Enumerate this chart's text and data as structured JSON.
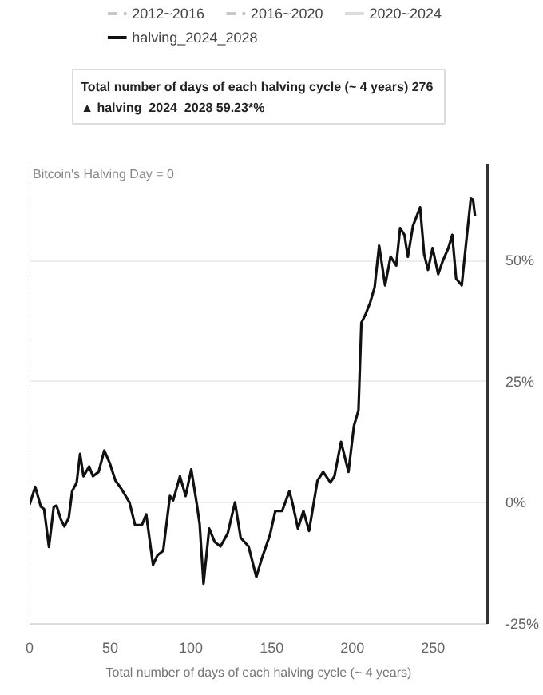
{
  "chart_data": {
    "type": "line",
    "xlabel": "Total number of days of each halving cycle (~ 4 years)",
    "annotations": [
      "Total number of days of each halving cycle (~ 4 years) 276",
      "▲ halving_2024_2028   59.23*%"
    ],
    "x": [
      0,
      3.5,
      7,
      9,
      12,
      15,
      16.7,
      19.5,
      21.6,
      24.3,
      26.4,
      29.2,
      31.3,
      33.4,
      36.9,
      39.3,
      42.8,
      46.3,
      49.7,
      53.2,
      56.7,
      61.9,
      65.4,
      69.6,
      72.3,
      76.5,
      79.3,
      82.8,
      87,
      89,
      93.2,
      96.7,
      100.2,
      103.7,
      105.4,
      107.8,
      111.3,
      114.8,
      118.3,
      122.8,
      127.3,
      130.8,
      135.7,
      140.5,
      143.7,
      148.9,
      152.3,
      156.5,
      161,
      162.8,
      166.3,
      169.7,
      173.2,
      178.4,
      181.9,
      186.4,
      188.9,
      193,
      197.6,
      201,
      203.8,
      205.6,
      208.3,
      211,
      213.8,
      216.6,
      220.3,
      223.7,
      227.2,
      229.6,
      232.3,
      234.4,
      237.6,
      242,
      244.5,
      246.9,
      249.7,
      253.2,
      256,
      259.5,
      261.9,
      264.3,
      267.8,
      270.6,
      273.4,
      274.8,
      276
    ],
    "series": [
      {
        "name": "2012~2016",
        "color": "#c8c8c8",
        "line_style": "dashed",
        "values": [
          null,
          null,
          null,
          null,
          null,
          null,
          null,
          null,
          null,
          null,
          null,
          null,
          null,
          null,
          null,
          null,
          null,
          null,
          null,
          null,
          null,
          null,
          null,
          null,
          null,
          null,
          null,
          null,
          null,
          null,
          null,
          null,
          null,
          null,
          null,
          null,
          null,
          null,
          null,
          null,
          null,
          null,
          null,
          null,
          null,
          null,
          null,
          null,
          null,
          null,
          null,
          null,
          null,
          null,
          null,
          null,
          null,
          null,
          null,
          null,
          null,
          null,
          null,
          null,
          null,
          null,
          null,
          null,
          null,
          null,
          null,
          null,
          null,
          null,
          null,
          null,
          null,
          null,
          null,
          null,
          null,
          null,
          null,
          null,
          null,
          null,
          null
        ]
      },
      {
        "name": "2016~2020",
        "color": "#c8c8c8",
        "line_style": "dashed",
        "values": [
          null,
          null,
          null,
          null,
          null,
          null,
          null,
          null,
          null,
          null,
          null,
          null,
          null,
          null,
          null,
          null,
          null,
          null,
          null,
          null,
          null,
          null,
          null,
          null,
          null,
          null,
          null,
          null,
          null,
          null,
          null,
          null,
          null,
          null,
          null,
          null,
          null,
          null,
          null,
          null,
          null,
          null,
          null,
          null,
          null,
          null,
          null,
          null,
          null,
          null,
          null,
          null,
          null,
          null,
          null,
          null,
          null,
          null,
          null,
          null,
          null,
          null,
          null,
          null,
          null,
          null,
          null,
          null,
          null,
          null,
          null,
          null,
          null,
          null,
          null,
          null,
          null,
          null,
          null,
          null,
          null,
          null,
          null,
          null,
          null,
          null,
          null
        ]
      },
      {
        "name": "2020~2024",
        "color": "#dcdcdc",
        "line_style": "solid",
        "values": [
          null,
          null,
          null,
          null,
          null,
          null,
          null,
          null,
          null,
          null,
          null,
          null,
          null,
          null,
          null,
          null,
          null,
          null,
          null,
          null,
          null,
          null,
          null,
          null,
          null,
          null,
          null,
          null,
          null,
          null,
          null,
          null,
          null,
          null,
          null,
          null,
          null,
          null,
          null,
          null,
          null,
          null,
          null,
          null,
          null,
          null,
          null,
          null,
          null,
          null,
          null,
          null,
          null,
          null,
          null,
          null,
          null,
          null,
          null,
          null,
          null,
          null,
          null,
          null,
          null,
          null,
          null,
          null,
          null,
          null,
          null,
          null,
          null,
          null,
          null,
          null,
          null,
          null,
          null,
          null,
          null,
          null,
          null,
          null,
          null,
          null,
          null
        ]
      },
      {
        "name": "halving_2024_2028",
        "color": "#111111",
        "line_style": "solid",
        "values": [
          -0.4,
          3.3,
          -0.8,
          -1.3,
          -9.1,
          -0.8,
          -0.6,
          -3.5,
          -4.9,
          -3.1,
          2.4,
          4.2,
          10.1,
          5.5,
          7.5,
          5.5,
          6.4,
          10.8,
          8.2,
          4.6,
          3.0,
          0.1,
          -4.6,
          -4.6,
          -2.4,
          -12.8,
          -10.8,
          -9.9,
          1.4,
          0.5,
          5.5,
          1.4,
          6.9,
          -0.4,
          -4.4,
          -16.7,
          -5.3,
          -8.1,
          -9.0,
          -6.3,
          0.1,
          -7.2,
          -9.0,
          -15.3,
          -11.7,
          -6.7,
          -1.7,
          -1.7,
          2.4,
          0.1,
          -5.3,
          -1.7,
          -5.8,
          4.6,
          6.4,
          4.2,
          5.5,
          12.6,
          6.4,
          15.9,
          19.1,
          37.2,
          39.0,
          41.3,
          44.5,
          53.1,
          44.9,
          50.8,
          49.0,
          56.7,
          55.3,
          50.8,
          57.2,
          61.0,
          51.3,
          48.1,
          52.6,
          47.2,
          49.9,
          52.6,
          55.3,
          46.3,
          44.9,
          54.0,
          62.8,
          62.6,
          59.2
        ]
      }
    ],
    "xlim": [
      0,
      284
    ],
    "ylim": [
      -25,
      70
    ],
    "xticks": [
      0,
      50,
      100,
      150,
      200,
      250
    ],
    "yticks": [
      {
        "value": -25,
        "label": "-25%"
      },
      {
        "value": 0,
        "label": "0%"
      },
      {
        "value": 25,
        "label": "25%"
      },
      {
        "value": 50,
        "label": "50%"
      }
    ],
    "ref_lines": [
      {
        "axis": "x",
        "value": 0,
        "label": "Bitcoin's Halving Day = 0",
        "color": "#555555",
        "line_style": "dashed"
      }
    ],
    "grid": "y",
    "legend": "top",
    "marker": "none"
  }
}
